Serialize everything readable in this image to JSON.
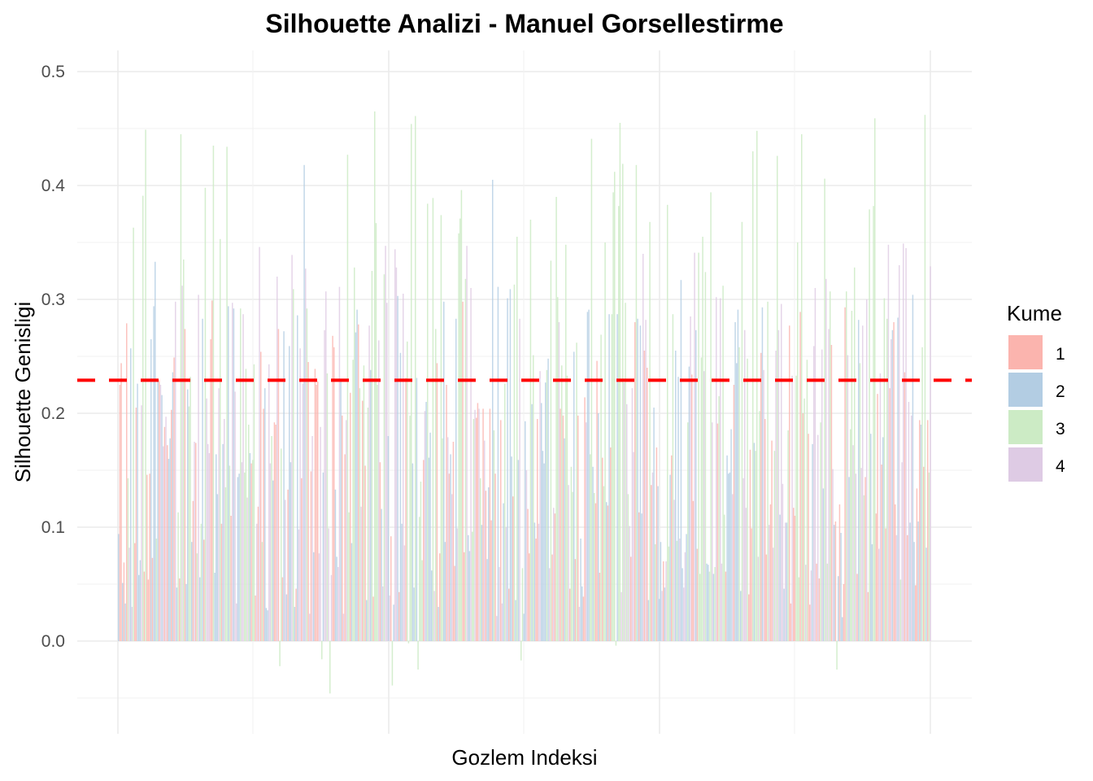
{
  "chart_data": {
    "type": "bar",
    "title": "Silhouette Analizi - Manuel Gorsellestirme",
    "xlabel": "Gozlem Indeksi",
    "ylabel": "Silhouette Genisligi",
    "ylim": [
      -0.05,
      0.5
    ],
    "xlim": [
      0,
      600
    ],
    "y_ticks": [
      "0.0",
      "0.1",
      "0.2",
      "0.3",
      "0.4",
      "0.5"
    ],
    "y_tick_values": [
      0.0,
      0.1,
      0.2,
      0.3,
      0.4,
      0.5
    ],
    "grid": true,
    "reference_line": {
      "y": 0.229,
      "color": "#ff0000",
      "style": "dashed"
    },
    "legend": {
      "title": "Kume",
      "placement": "right",
      "entries": [
        {
          "label": "1",
          "color": "#FBB4AE"
        },
        {
          "label": "2",
          "color": "#B3CDE3"
        },
        {
          "label": "3",
          "color": "#CCEBC5"
        },
        {
          "label": "4",
          "color": "#DECBE4"
        }
      ]
    },
    "series": [
      {
        "name": "1",
        "cluster": 1,
        "color": "#FBB4AE",
        "count": 150,
        "value_range": [
          0.0,
          0.3
        ],
        "mean": 0.18
      },
      {
        "name": "2",
        "cluster": 2,
        "color": "#B3CDE3",
        "count": 150,
        "value_range": [
          0.0,
          0.46
        ],
        "mean": 0.2
      },
      {
        "name": "3",
        "cluster": 3,
        "color": "#CCEBC5",
        "count": 150,
        "value_range": [
          -0.055,
          0.465
        ],
        "mean": 0.25
      },
      {
        "name": "4",
        "cluster": 4,
        "color": "#DECBE4",
        "count": 150,
        "value_range": [
          0.0,
          0.35
        ],
        "mean": 0.2
      }
    ]
  }
}
